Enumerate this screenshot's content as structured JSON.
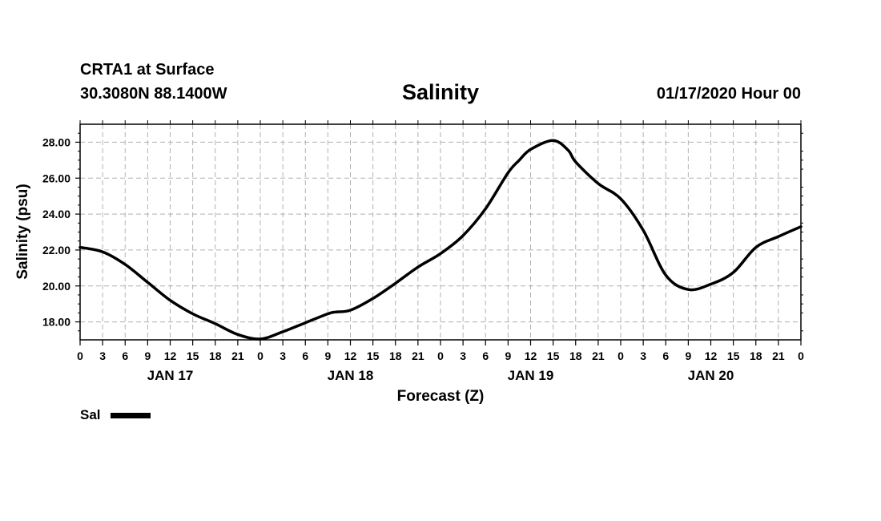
{
  "header": {
    "station": "CRTA1 at Surface",
    "coords": "30.3080N 88.1400W",
    "stamp": "01/17/2020 Hour 00"
  },
  "chart_data": {
    "type": "line",
    "title": "Salinity",
    "xlabel": "Forecast (Z)",
    "ylabel": "Salinity (psu)",
    "x_unit": "hours since 01/17/2020 00Z",
    "xlim": [
      0,
      96
    ],
    "ylim": [
      17.0,
      29.0
    ],
    "grid": true,
    "hour_ticks": [
      "0",
      "3",
      "6",
      "9",
      "12",
      "15",
      "18",
      "21",
      "0",
      "3",
      "6",
      "9",
      "12",
      "15",
      "18",
      "21",
      "0",
      "3",
      "6",
      "9",
      "12",
      "15",
      "18",
      "21",
      "0",
      "3",
      "6",
      "9",
      "12",
      "15",
      "18",
      "21",
      "0"
    ],
    "day_labels": [
      {
        "label": "JAN 17",
        "x": 12
      },
      {
        "label": "JAN 18",
        "x": 36
      },
      {
        "label": "JAN 19",
        "x": 60
      },
      {
        "label": "JAN 20",
        "x": 84
      }
    ],
    "y_ticks": [
      18,
      20,
      22,
      24,
      26,
      28
    ],
    "y_tick_labels": [
      "18.00",
      "20.00",
      "22.00",
      "24.00",
      "26.00",
      "28.00"
    ],
    "legend": "bottom-left",
    "series": [
      {
        "name": "Sal",
        "color": "#000000",
        "x": [
          0,
          3,
          6,
          9,
          12,
          15,
          18,
          21,
          24,
          27,
          30,
          33,
          34,
          36,
          39,
          42,
          45,
          48,
          51,
          54,
          57,
          58.5,
          60,
          63,
          65,
          66,
          69,
          72,
          75,
          78,
          81,
          84,
          87,
          90,
          93,
          96
        ],
        "y": [
          22.15,
          21.9,
          21.2,
          20.2,
          19.2,
          18.45,
          17.9,
          17.3,
          17.05,
          17.45,
          17.95,
          18.45,
          18.55,
          18.65,
          19.3,
          20.15,
          21.05,
          21.8,
          22.8,
          24.3,
          26.3,
          27.0,
          27.6,
          28.1,
          27.55,
          26.9,
          25.7,
          24.85,
          23.1,
          20.6,
          19.8,
          20.1,
          20.75,
          22.15,
          22.75,
          23.3
        ]
      }
    ]
  }
}
